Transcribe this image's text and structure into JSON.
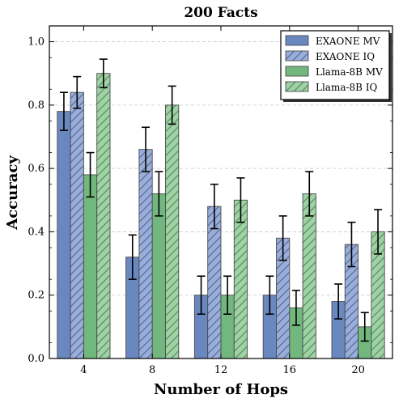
{
  "chart_data": {
    "type": "bar",
    "title": "200 Facts",
    "xlabel": "Number of Hops",
    "ylabel": "Accuracy",
    "categories": [
      "4",
      "8",
      "12",
      "16",
      "20"
    ],
    "ylim": [
      0,
      1.05
    ],
    "yticks": [
      "0.0",
      "0.2",
      "0.4",
      "0.6",
      "0.8",
      "1.0"
    ],
    "grid": true,
    "legend_position": "top-right",
    "series": [
      {
        "name": "EXAONE MV",
        "values": [
          0.78,
          0.32,
          0.2,
          0.2,
          0.18
        ],
        "errors": [
          0.06,
          0.07,
          0.06,
          0.06,
          0.055
        ],
        "color": "#6a88c0",
        "hatch": false
      },
      {
        "name": "EXAONE IQ",
        "values": [
          0.84,
          0.66,
          0.48,
          0.38,
          0.36
        ],
        "errors": [
          0.05,
          0.07,
          0.07,
          0.07,
          0.07
        ],
        "color": "#9aaedb",
        "hatch": true
      },
      {
        "name": "Llama-8B MV",
        "values": [
          0.58,
          0.52,
          0.2,
          0.16,
          0.1
        ],
        "errors": [
          0.07,
          0.07,
          0.06,
          0.055,
          0.045
        ],
        "color": "#72b87e",
        "hatch": false
      },
      {
        "name": "Llama-8B IQ",
        "values": [
          0.9,
          0.8,
          0.5,
          0.52,
          0.4
        ],
        "errors": [
          0.045,
          0.06,
          0.07,
          0.07,
          0.07
        ],
        "color": "#9fd3a6",
        "hatch": true
      }
    ]
  }
}
